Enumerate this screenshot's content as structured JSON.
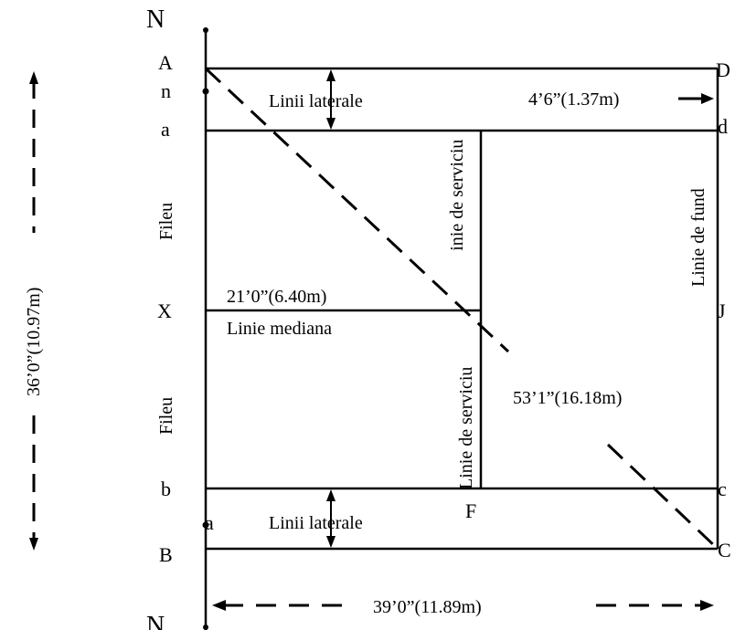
{
  "labels": {
    "north_top": "N",
    "north_bottom": "N",
    "A": "A",
    "n": "n",
    "a_upper": "a",
    "X": "X",
    "b": "b",
    "a_lower": "a",
    "B": "B",
    "D": "D",
    "d": "d",
    "J": "J",
    "c": "c",
    "C": "C",
    "F": "F"
  },
  "annotations": {
    "lateral_top": "Linii laterale",
    "lateral_bottom": "Linii laterale",
    "lateral_width": "4’6”(1.37m)",
    "net_upper": "Fileu",
    "net_lower": "Fileu",
    "service_line_upper": "Linie de serviciu",
    "service_line_lower": "Linie de serviciu",
    "back_line": "Linie de fund",
    "center_dimension": "21’0”(6.40m)",
    "center_line": "Linie mediana",
    "diagonal": "53’1”(16.18m)",
    "width_dimension": "36’0”(10.97m)",
    "length_dimension": "39’0”(11.89m)"
  },
  "colors": {
    "line": "#000000",
    "background": "#ffffff"
  }
}
